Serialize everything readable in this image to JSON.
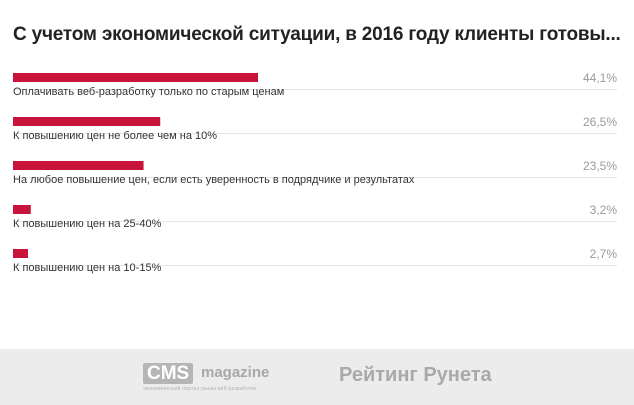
{
  "header": {
    "title": "С учетом экономической ситуации, в 2016 году клиенты готовы..."
  },
  "chart_data": {
    "type": "bar",
    "orientation": "horizontal",
    "categories": [
      "Оплачивать веб-разработку только по старым ценам",
      "К повышению цен не более чем на 10%",
      "На любое повышение цен, если есть уверенность в подрядчике и результатах",
      "К повышению цен на 25-40%",
      "К повышению цен на 10-15%"
    ],
    "values": [
      44.1,
      26.5,
      23.5,
      3.2,
      2.7
    ],
    "value_labels": [
      "44,1%",
      "26,5%",
      "23,5%",
      "3,2%",
      "2,7%"
    ],
    "unit": "%",
    "bar_color": "#c8133a",
    "grid": false,
    "legend": "none"
  },
  "footer": {
    "cms_badge": "CMS",
    "cms_word": "magazine",
    "cms_tagline": "экономический портал рынка веб-разработок",
    "rating": "Рейтинг Рунета"
  }
}
